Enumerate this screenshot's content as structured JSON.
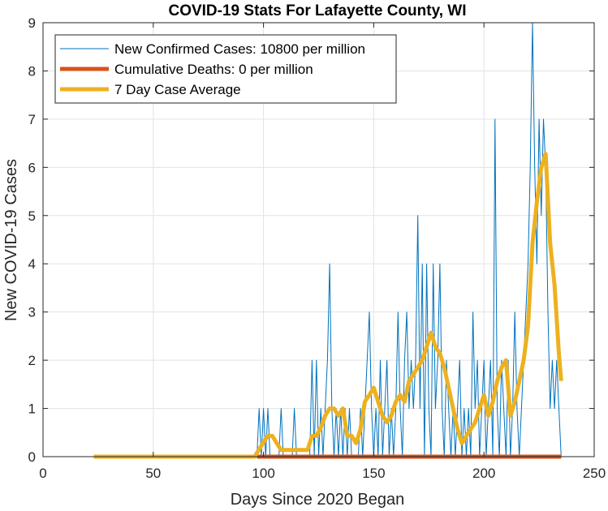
{
  "chart_data": {
    "type": "line",
    "title": "COVID-19 Stats For Lafayette County, WI",
    "xlabel": "Days Since 2020 Began",
    "ylabel": "New COVID-19 Cases",
    "xlim": [
      0,
      250
    ],
    "ylim": [
      0,
      9
    ],
    "xticks": [
      0,
      50,
      100,
      150,
      200,
      250
    ],
    "yticks": [
      0,
      1,
      2,
      3,
      4,
      5,
      6,
      7,
      8,
      9
    ],
    "grid": true,
    "legend_position": "top-left",
    "series": [
      {
        "name": "New Confirmed Cases: 10800 per million",
        "color": "#0072BD",
        "width": 1,
        "points": [
          [
            23,
            0
          ],
          [
            97,
            0
          ],
          [
            98,
            1
          ],
          [
            99,
            0
          ],
          [
            100,
            1
          ],
          [
            101,
            0
          ],
          [
            102,
            1
          ],
          [
            103,
            0
          ],
          [
            107,
            0
          ],
          [
            108,
            1
          ],
          [
            109,
            0
          ],
          [
            113,
            0
          ],
          [
            114,
            1
          ],
          [
            115,
            0
          ],
          [
            120,
            0
          ],
          [
            121,
            0
          ],
          [
            122,
            2
          ],
          [
            123,
            0
          ],
          [
            124,
            2
          ],
          [
            125,
            0
          ],
          [
            126,
            1
          ],
          [
            127,
            0
          ],
          [
            128,
            1
          ],
          [
            129,
            2
          ],
          [
            130,
            4
          ],
          [
            131,
            1
          ],
          [
            132,
            0
          ],
          [
            133,
            1
          ],
          [
            134,
            0
          ],
          [
            135,
            1
          ],
          [
            136,
            0
          ],
          [
            137,
            1
          ],
          [
            138,
            0
          ],
          [
            139,
            1
          ],
          [
            140,
            0
          ],
          [
            141,
            0
          ],
          [
            142,
            0
          ],
          [
            143,
            0
          ],
          [
            144,
            1
          ],
          [
            145,
            0
          ],
          [
            146,
            1
          ],
          [
            147,
            2
          ],
          [
            148,
            3
          ],
          [
            149,
            1
          ],
          [
            150,
            0
          ],
          [
            151,
            1
          ],
          [
            152,
            0
          ],
          [
            153,
            2
          ],
          [
            154,
            0
          ],
          [
            155,
            1
          ],
          [
            156,
            2
          ],
          [
            157,
            0
          ],
          [
            158,
            1
          ],
          [
            159,
            0
          ],
          [
            160,
            1
          ],
          [
            161,
            3
          ],
          [
            162,
            1
          ],
          [
            163,
            0
          ],
          [
            164,
            2
          ],
          [
            165,
            3
          ],
          [
            166,
            1
          ],
          [
            167,
            2
          ],
          [
            168,
            1
          ],
          [
            169,
            2
          ],
          [
            170,
            5
          ],
          [
            171,
            1
          ],
          [
            172,
            4
          ],
          [
            173,
            0
          ],
          [
            174,
            4
          ],
          [
            175,
            1
          ],
          [
            176,
            0
          ],
          [
            177,
            4
          ],
          [
            178,
            1
          ],
          [
            179,
            2
          ],
          [
            180,
            4
          ],
          [
            181,
            1
          ],
          [
            182,
            0
          ],
          [
            183,
            2
          ],
          [
            184,
            1
          ],
          [
            185,
            0
          ],
          [
            186,
            1
          ],
          [
            187,
            0
          ],
          [
            188,
            1
          ],
          [
            189,
            2
          ],
          [
            190,
            0
          ],
          [
            191,
            1
          ],
          [
            192,
            0
          ],
          [
            193,
            1
          ],
          [
            194,
            0
          ],
          [
            195,
            3
          ],
          [
            196,
            1
          ],
          [
            197,
            2
          ],
          [
            198,
            0
          ],
          [
            199,
            1
          ],
          [
            200,
            2
          ],
          [
            201,
            0
          ],
          [
            202,
            1
          ],
          [
            203,
            2
          ],
          [
            204,
            0
          ],
          [
            205,
            7
          ],
          [
            206,
            1
          ],
          [
            207,
            0
          ],
          [
            208,
            2
          ],
          [
            209,
            1
          ],
          [
            210,
            0
          ],
          [
            211,
            2
          ],
          [
            212,
            0
          ],
          [
            213,
            1
          ],
          [
            214,
            3
          ],
          [
            215,
            1
          ],
          [
            216,
            0
          ],
          [
            217,
            1
          ],
          [
            218,
            2
          ],
          [
            219,
            3
          ],
          [
            220,
            4
          ],
          [
            221,
            6
          ],
          [
            222,
            9
          ],
          [
            223,
            6
          ],
          [
            224,
            4
          ],
          [
            225,
            7
          ],
          [
            226,
            5
          ],
          [
            227,
            7
          ],
          [
            228,
            6
          ],
          [
            229,
            3
          ],
          [
            230,
            1
          ],
          [
            231,
            2
          ],
          [
            232,
            1
          ],
          [
            233,
            2
          ],
          [
            234,
            1
          ],
          [
            235,
            0
          ]
        ]
      },
      {
        "name": "Cumulative Deaths: 0 per million",
        "color": "#D95319",
        "width": 5,
        "points": [
          [
            97,
            0
          ],
          [
            235,
            0
          ]
        ]
      },
      {
        "name": "7 Day Case Average",
        "color": "#EDB120",
        "width": 5,
        "points": [
          [
            23,
            0
          ],
          [
            96,
            0
          ],
          [
            98,
            0.15
          ],
          [
            100,
            0.3
          ],
          [
            102,
            0.43
          ],
          [
            104,
            0.43
          ],
          [
            106,
            0.28
          ],
          [
            108,
            0.14
          ],
          [
            110,
            0.14
          ],
          [
            112,
            0.14
          ],
          [
            114,
            0.14
          ],
          [
            116,
            0.14
          ],
          [
            118,
            0.14
          ],
          [
            120,
            0.14
          ],
          [
            122,
            0.43
          ],
          [
            124,
            0.43
          ],
          [
            126,
            0.6
          ],
          [
            128,
            0.85
          ],
          [
            130,
            1.0
          ],
          [
            132,
            1.0
          ],
          [
            134,
            0.85
          ],
          [
            136,
            1.0
          ],
          [
            138,
            0.43
          ],
          [
            140,
            0.43
          ],
          [
            142,
            0.28
          ],
          [
            144,
            0.57
          ],
          [
            146,
            1.14
          ],
          [
            148,
            1.28
          ],
          [
            150,
            1.43
          ],
          [
            152,
            1.14
          ],
          [
            154,
            0.85
          ],
          [
            156,
            0.71
          ],
          [
            158,
            0.85
          ],
          [
            160,
            1.14
          ],
          [
            162,
            1.28
          ],
          [
            164,
            1.14
          ],
          [
            166,
            1.57
          ],
          [
            168,
            1.71
          ],
          [
            170,
            1.85
          ],
          [
            172,
            2.0
          ],
          [
            174,
            2.28
          ],
          [
            176,
            2.57
          ],
          [
            178,
            2.28
          ],
          [
            180,
            2.14
          ],
          [
            182,
            1.85
          ],
          [
            184,
            1.43
          ],
          [
            186,
            1.0
          ],
          [
            188,
            0.57
          ],
          [
            190,
            0.28
          ],
          [
            192,
            0.43
          ],
          [
            194,
            0.57
          ],
          [
            196,
            0.71
          ],
          [
            198,
            1.0
          ],
          [
            200,
            1.28
          ],
          [
            202,
            0.85
          ],
          [
            204,
            1.14
          ],
          [
            206,
            1.57
          ],
          [
            208,
            1.85
          ],
          [
            210,
            2.0
          ],
          [
            212,
            0.85
          ],
          [
            214,
            1.14
          ],
          [
            216,
            1.57
          ],
          [
            218,
            2.0
          ],
          [
            220,
            2.71
          ],
          [
            222,
            4.43
          ],
          [
            224,
            5.28
          ],
          [
            226,
            6.0
          ],
          [
            228,
            6.28
          ],
          [
            230,
            4.43
          ],
          [
            232,
            3.57
          ],
          [
            234,
            2.14
          ],
          [
            235,
            1.57
          ]
        ]
      }
    ]
  }
}
